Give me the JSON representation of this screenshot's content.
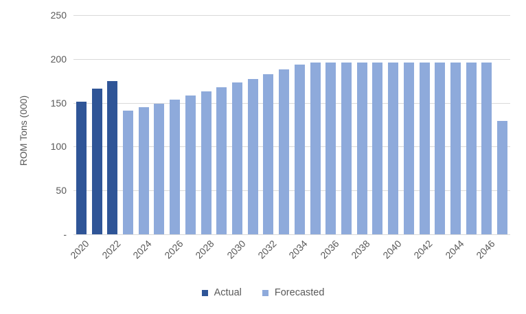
{
  "y_axis": {
    "title": "ROM Tons (000)"
  },
  "legend": {
    "items": [
      {
        "label": "Actual",
        "color": "#2F5597"
      },
      {
        "label": "Forecasted",
        "color": "#8EAADB"
      }
    ]
  },
  "colors": {
    "actual": "#2F5597",
    "forecasted": "#8EAADB",
    "gridline": "#D9D9D9",
    "axis_line": "#D9D9D9",
    "tick_text": "#595959",
    "background": "#FFFFFF"
  },
  "chart_data": {
    "type": "bar",
    "title": "",
    "xlabel": "",
    "ylabel": "ROM Tons (000)",
    "ylim": [
      0,
      250
    ],
    "grid": true,
    "legend_position": "bottom",
    "y_ticks": [
      {
        "value": 0,
        "label": "-"
      },
      {
        "value": 50,
        "label": "50"
      },
      {
        "value": 100,
        "label": "100"
      },
      {
        "value": 150,
        "label": "150"
      },
      {
        "value": 200,
        "label": "200"
      },
      {
        "value": 250,
        "label": "250"
      }
    ],
    "x_tick_labels": [
      "2020",
      "2022",
      "2024",
      "2026",
      "2028",
      "2030",
      "2032",
      "2034",
      "2036",
      "2038",
      "2040",
      "2042",
      "2044",
      "2046"
    ],
    "categories": [
      2020,
      2021,
      2022,
      2023,
      2024,
      2025,
      2026,
      2027,
      2028,
      2029,
      2030,
      2031,
      2032,
      2033,
      2034,
      2035,
      2036,
      2037,
      2038,
      2039,
      2040,
      2041,
      2042,
      2043,
      2044,
      2045,
      2046,
      2047
    ],
    "series": [
      {
        "name": "Actual",
        "color": "#2F5597",
        "values": [
          151,
          166,
          175,
          null,
          null,
          null,
          null,
          null,
          null,
          null,
          null,
          null,
          null,
          null,
          null,
          null,
          null,
          null,
          null,
          null,
          null,
          null,
          null,
          null,
          null,
          null,
          null,
          null
        ]
      },
      {
        "name": "Forecasted",
        "color": "#8EAADB",
        "values": [
          null,
          null,
          null,
          141,
          145,
          149,
          154,
          158,
          163,
          168,
          173,
          177,
          183,
          188,
          194,
          196,
          196,
          196,
          196,
          196,
          196,
          196,
          196,
          196,
          196,
          196,
          196,
          129
        ]
      }
    ]
  }
}
